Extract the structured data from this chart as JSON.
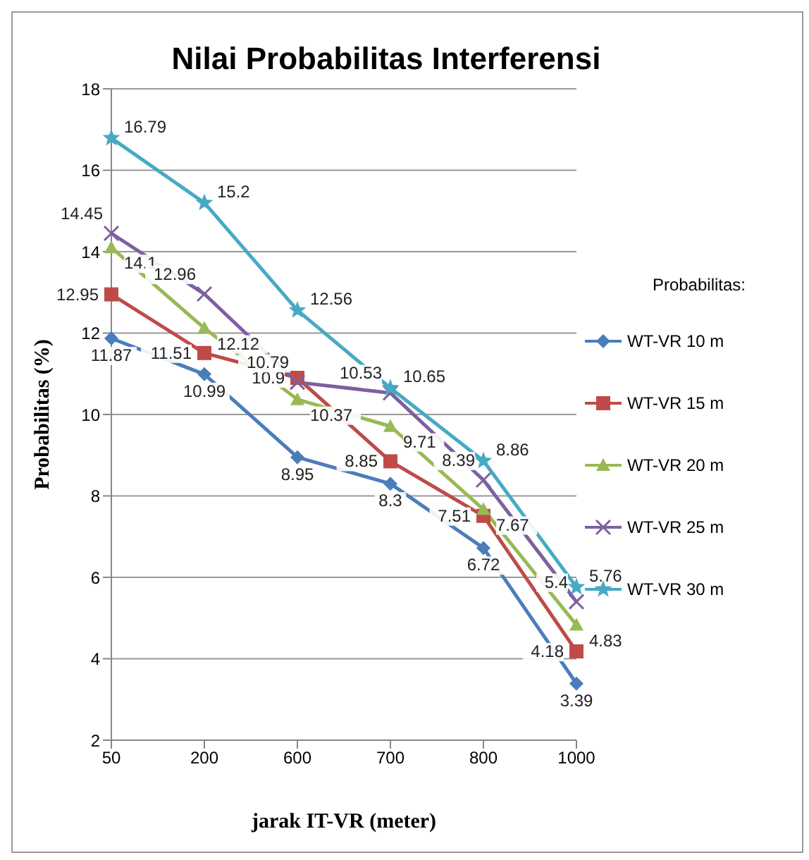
{
  "chart_data": {
    "type": "line",
    "title": "Nilai Probabilitas Interferensi",
    "xlabel": "jarak IT-VR (meter)",
    "ylabel": "Probabilitas  (%)",
    "legend_title": "Probabilitas:",
    "categories": [
      "50",
      "200",
      "600",
      "700",
      "800",
      "1000"
    ],
    "series": [
      {
        "name": "WT-VR 10 m",
        "color": "#4a7ebb",
        "marker": "diamond",
        "values": [
          11.87,
          10.99,
          8.95,
          8.3,
          6.72,
          3.39
        ]
      },
      {
        "name": "WT-VR 15 m",
        "color": "#be4b48",
        "marker": "square",
        "values": [
          12.95,
          11.51,
          10.9,
          8.85,
          7.51,
          4.18
        ]
      },
      {
        "name": "WT-VR 20 m",
        "color": "#98b954",
        "marker": "triangle",
        "values": [
          14.1,
          12.12,
          10.37,
          9.71,
          7.67,
          4.83
        ]
      },
      {
        "name": "WT-VR 25 m",
        "color": "#7d60a0",
        "marker": "cross",
        "values": [
          14.45,
          12.96,
          10.79,
          10.53,
          8.39,
          5.4
        ]
      },
      {
        "name": "WT-VR 30 m",
        "color": "#46aac5",
        "marker": "star",
        "values": [
          16.79,
          15.2,
          12.56,
          10.65,
          8.86,
          5.76
        ]
      }
    ],
    "ylim": [
      2,
      18
    ],
    "yticks": [
      2,
      4,
      6,
      8,
      10,
      12,
      14,
      16,
      18
    ],
    "grid": "y",
    "legend": "right",
    "data_labels": true
  }
}
